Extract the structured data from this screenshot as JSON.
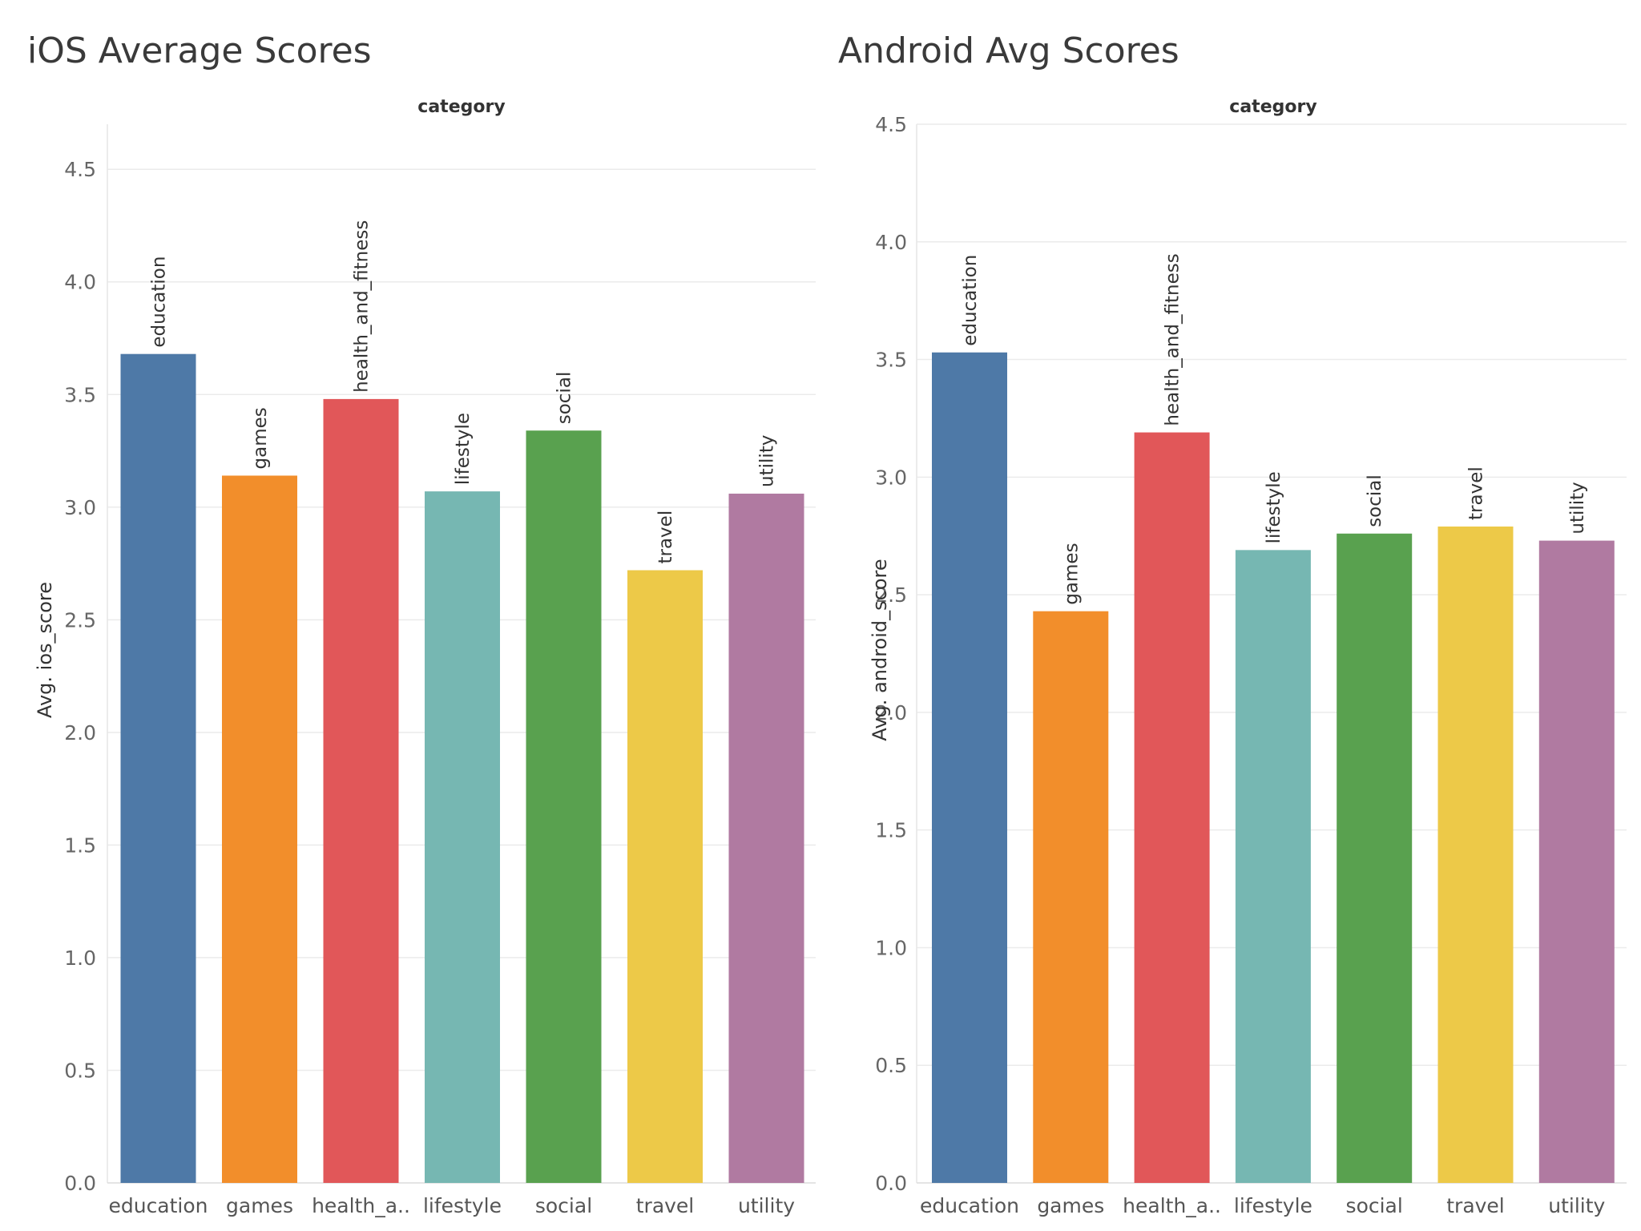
{
  "chart_data": [
    {
      "type": "bar",
      "title": "iOS Average Scores",
      "header_label": "category",
      "ylabel": "Avg. ios_score",
      "categories": [
        "education",
        "games",
        "health_and_fitness",
        "lifestyle",
        "social",
        "travel",
        "utility"
      ],
      "tick_labels": [
        "education",
        "games",
        "health_a..",
        "lifestyle",
        "social",
        "travel",
        "utility"
      ],
      "values": [
        3.68,
        3.14,
        3.48,
        3.07,
        3.34,
        2.72,
        3.06
      ],
      "colors": [
        "#4e79a7",
        "#f28e2b",
        "#e15759",
        "#76b7b2",
        "#59a14f",
        "#edc948",
        "#b07aa1"
      ],
      "ylim": [
        0,
        4.7
      ],
      "yticks": [
        "0.0",
        "0.5",
        "1.0",
        "1.5",
        "2.0",
        "2.5",
        "3.0",
        "3.5",
        "4.0",
        "4.5"
      ],
      "grid": true,
      "legend": "none"
    },
    {
      "type": "bar",
      "title": "Android Avg Scores",
      "header_label": "category",
      "ylabel": "Avg. android_score",
      "categories": [
        "education",
        "games",
        "health_and_fitness",
        "lifestyle",
        "social",
        "travel",
        "utility"
      ],
      "tick_labels": [
        "education",
        "games",
        "health_a..",
        "lifestyle",
        "social",
        "travel",
        "utility"
      ],
      "values": [
        3.53,
        2.43,
        3.19,
        2.69,
        2.76,
        2.79,
        2.73
      ],
      "colors": [
        "#4e79a7",
        "#f28e2b",
        "#e15759",
        "#76b7b2",
        "#59a14f",
        "#edc948",
        "#b07aa1"
      ],
      "ylim": [
        0,
        4.5
      ],
      "yticks": [
        "0.0",
        "0.5",
        "1.0",
        "1.5",
        "2.0",
        "2.5",
        "3.0",
        "3.5",
        "4.0",
        "4.5"
      ],
      "grid": true,
      "legend": "none"
    }
  ]
}
